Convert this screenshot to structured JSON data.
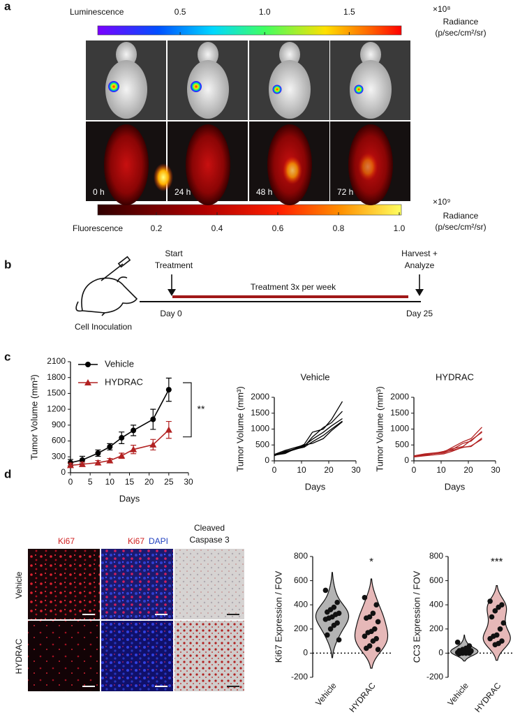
{
  "panel_labels": [
    "a",
    "b",
    "c",
    "d"
  ],
  "panel_a": {
    "luminescence": {
      "label": "Luminescence",
      "multiplier": "×10⁸",
      "unit_title": "Radiance",
      "unit": "(p/sec/cm²/sr)",
      "xlim": [
        0,
        1.8
      ],
      "xticks": [
        0.5,
        {
          "value": 1,
          "label": "1.0"
        },
        1.5
      ]
    },
    "fluorescence": {
      "label": "Fluorescence",
      "multiplier": "×10⁹",
      "unit_title": "Radiance",
      "unit": "(p/sec/cm²/sr)",
      "xlim": [
        0,
        1
      ],
      "xticks": [
        0.2,
        0.4,
        0.6,
        0.8,
        {
          "value": 1,
          "label": "1.0"
        }
      ]
    },
    "time_labels": [
      "0 h",
      "24 h",
      "48 h",
      "72 h"
    ]
  },
  "panel_b": {
    "start": [
      "Start",
      "Treatment"
    ],
    "harvest": [
      "Harvest +",
      "Analyze"
    ],
    "treatment": "Treatment 3x per week",
    "day_start": "Day 0",
    "day_end": "Day 25",
    "inoculation": "Cell Inoculation"
  },
  "panel_d": {
    "stains": {
      "ki67": "Ki67",
      "ki67_merge": "Ki67",
      "dapi": "DAPI",
      "cc3": [
        "Cleaved",
        "Caspase 3"
      ]
    },
    "rows": [
      "Vehicle",
      "HYDRAC"
    ]
  },
  "chart_data": [
    {
      "type": "line",
      "xlabel": "Days",
      "ylabel": "Tumor Volume (mm³)",
      "x": [
        0,
        3,
        7,
        10,
        13,
        16,
        21,
        25
      ],
      "series": [
        {
          "name": "Vehicle",
          "color": "#000000",
          "marker": "circle",
          "values": [
            190,
            240,
            370,
            490,
            660,
            800,
            1010,
            1570
          ],
          "errors": [
            60,
            70,
            60,
            60,
            110,
            100,
            190,
            220
          ]
        },
        {
          "name": "HYDRAC",
          "color": "#b22222",
          "marker": "triangle",
          "values": [
            140,
            160,
            190,
            230,
            320,
            440,
            530,
            810
          ],
          "errors": [
            40,
            40,
            40,
            40,
            50,
            80,
            100,
            160
          ]
        }
      ],
      "xlim": [
        0,
        30
      ],
      "ylim": [
        0,
        2100
      ],
      "xticks": [
        0,
        5,
        10,
        15,
        20,
        25,
        30
      ],
      "yticks": [
        0,
        300,
        600,
        900,
        1200,
        1500,
        1800,
        2100
      ],
      "annotation": "**"
    },
    {
      "type": "line",
      "title": "Vehicle",
      "xlabel": "Days",
      "ylabel": "Tumor Volume (mm³)",
      "x": [
        0,
        4,
        11,
        14,
        18,
        21,
        25
      ],
      "series": [
        {
          "color": "#000000",
          "values": [
            180,
            230,
            520,
            900,
            1000,
            1300,
            1870
          ]
        },
        {
          "color": "#000000",
          "values": [
            170,
            260,
            450,
            750,
            1050,
            1200,
            1560
          ]
        },
        {
          "color": "#000000",
          "values": [
            190,
            280,
            480,
            680,
            900,
            1100,
            1330
          ]
        },
        {
          "color": "#000000",
          "values": [
            160,
            300,
            430,
            600,
            800,
            1000,
            1250
          ]
        },
        {
          "color": "#000000",
          "values": [
            200,
            330,
            500,
            550,
            700,
            950,
            1230
          ]
        }
      ],
      "xlim": [
        0,
        30
      ],
      "ylim": [
        0,
        2000
      ],
      "xticks": [
        0,
        10,
        20,
        30
      ],
      "yticks": [
        0,
        500,
        1000,
        1500,
        2000
      ]
    },
    {
      "type": "line",
      "title": "HYDRAC",
      "xlabel": "Days",
      "ylabel": "Tumor Volume (mm³)",
      "x": [
        0,
        4,
        11,
        14,
        18,
        21,
        25
      ],
      "series": [
        {
          "color": "#b22222",
          "values": [
            150,
            180,
            280,
            420,
            600,
            700,
            1060
          ]
        },
        {
          "color": "#b22222",
          "values": [
            140,
            200,
            250,
            350,
            550,
            620,
            930
          ]
        },
        {
          "color": "#b22222",
          "values": [
            130,
            170,
            300,
            380,
            450,
            650,
            900
          ]
        },
        {
          "color": "#b22222",
          "values": [
            120,
            160,
            220,
            300,
            430,
            450,
            720
          ]
        },
        {
          "color": "#b22222",
          "values": [
            160,
            220,
            280,
            330,
            420,
            470,
            680
          ]
        }
      ],
      "xlim": [
        0,
        30
      ],
      "ylim": [
        0,
        2000
      ],
      "xticks": [
        0,
        10,
        20,
        30
      ],
      "yticks": [
        0,
        500,
        1000,
        1500,
        2000
      ]
    },
    {
      "type": "violin",
      "ylabel": "Ki67 Expression / FOV",
      "categories": [
        "Vehicle",
        "HYDRAC"
      ],
      "points": [
        [
          520,
          420,
          380,
          360,
          340,
          330,
          320,
          300,
          290,
          280,
          250,
          230,
          200,
          150,
          110
        ],
        [
          460,
          400,
          330,
          300,
          290,
          260,
          200,
          180,
          170,
          140,
          120,
          100,
          60,
          40,
          30
        ]
      ],
      "colors": [
        "#b3b3b3",
        "#e6b8b8"
      ],
      "ylim": [
        -200,
        800
      ],
      "yticks": [
        -200,
        0,
        200,
        400,
        600,
        800
      ],
      "zero_line": true,
      "annotation": "*"
    },
    {
      "type": "violin",
      "ylabel": "CC3 Expression / FOV",
      "categories": [
        "Vehicle",
        "HYDRAC"
      ],
      "points": [
        [
          90,
          60,
          40,
          30,
          20,
          15,
          10,
          10,
          5,
          5,
          0,
          0,
          0,
          -5,
          20,
          30
        ],
        [
          430,
          400,
          380,
          350,
          300,
          250,
          200,
          150,
          140,
          120,
          100,
          80,
          70
        ]
      ],
      "colors": [
        "#b3b3b3",
        "#e6b8b8"
      ],
      "ylim": [
        -200,
        800
      ],
      "yticks": [
        -200,
        0,
        200,
        400,
        600,
        800
      ],
      "zero_line": true,
      "annotation": "***"
    }
  ]
}
